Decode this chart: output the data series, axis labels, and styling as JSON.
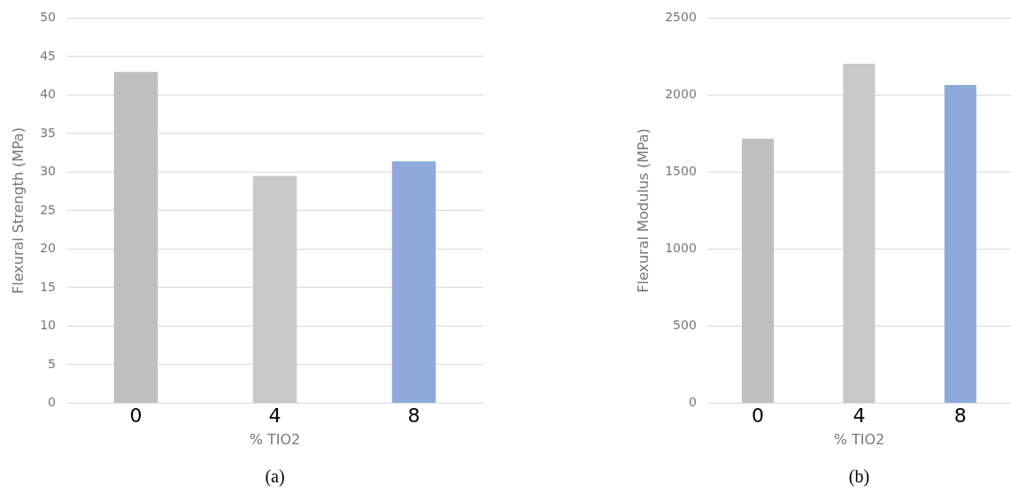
{
  "chart_data": [
    {
      "type": "bar",
      "categories": [
        "0",
        "4",
        "8"
      ],
      "values": [
        43,
        29.5,
        31.4
      ],
      "colors": [
        "#bfbfbf",
        "#c9c9c9",
        "#8eaadb"
      ],
      "xlabel": "% TIO2",
      "ylabel": "Flexural Strength (MPa)",
      "ylim": [
        0,
        50
      ],
      "yticks": [
        0,
        5,
        10,
        15,
        20,
        25,
        30,
        35,
        40,
        45,
        50
      ],
      "grid": "y",
      "annotations": [
        "(a)"
      ]
    },
    {
      "type": "bar",
      "categories": [
        "0",
        "4",
        "8"
      ],
      "values": [
        1717,
        2204,
        2066
      ],
      "colors": [
        "#bfbfbf",
        "#c9c9c9",
        "#8eaadb"
      ],
      "xlabel": "% TIO2",
      "ylabel": "Flexural Modulus (MPa)",
      "ylim": [
        0,
        2500
      ],
      "yticks": [
        0,
        500,
        1000,
        1500,
        2000,
        2500
      ],
      "grid": "y",
      "annotations": [
        "(b)"
      ]
    }
  ]
}
